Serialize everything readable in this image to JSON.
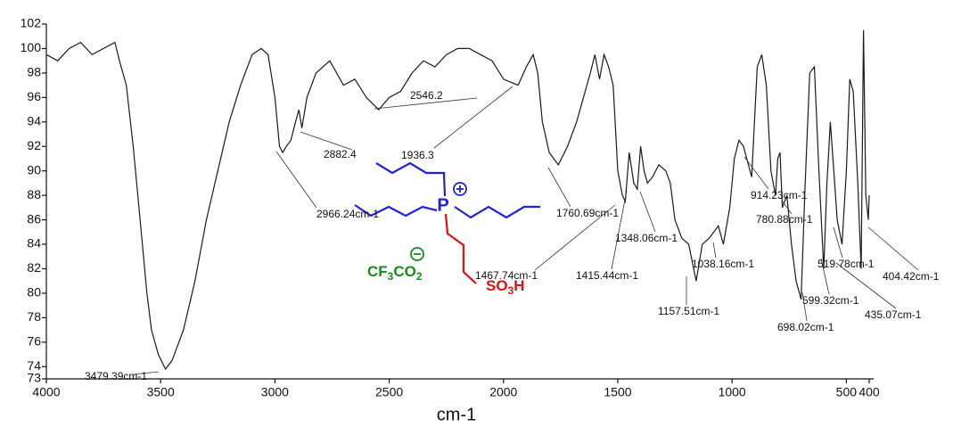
{
  "chart_data": {
    "type": "line",
    "x_label": "cm-1",
    "color": "#1a1a1a",
    "xlim": [
      4000,
      400
    ],
    "ylim": [
      73,
      102
    ],
    "xticks": [
      4000,
      3500,
      3000,
      2500,
      2000,
      1500,
      1000,
      500,
      400
    ],
    "yticks": [
      73,
      74,
      76,
      78,
      80,
      82,
      84,
      86,
      88,
      90,
      92,
      94,
      96,
      98,
      100,
      102
    ],
    "x": [
      4000,
      3950,
      3900,
      3850,
      3800,
      3750,
      3700,
      3680,
      3650,
      3620,
      3600,
      3580,
      3560,
      3540,
      3510,
      3479,
      3450,
      3400,
      3350,
      3300,
      3250,
      3200,
      3150,
      3100,
      3060,
      3030,
      3000,
      2980,
      2966,
      2950,
      2930,
      2910,
      2895,
      2882,
      2860,
      2820,
      2760,
      2700,
      2650,
      2600,
      2546,
      2500,
      2450,
      2400,
      2350,
      2300,
      2250,
      2200,
      2150,
      2100,
      2050,
      2000,
      1936,
      1900,
      1870,
      1850,
      1830,
      1800,
      1760,
      1720,
      1680,
      1650,
      1620,
      1600,
      1580,
      1560,
      1540,
      1520,
      1500,
      1480,
      1467,
      1450,
      1430,
      1415,
      1400,
      1385,
      1370,
      1348,
      1320,
      1290,
      1270,
      1250,
      1220,
      1190,
      1157,
      1130,
      1100,
      1060,
      1038,
      1010,
      990,
      970,
      950,
      914,
      890,
      870,
      850,
      830,
      810,
      800,
      790,
      780,
      760,
      740,
      720,
      698,
      680,
      660,
      640,
      620,
      599,
      585,
      570,
      555,
      540,
      519,
      500,
      485,
      470,
      450,
      435,
      425,
      415,
      404,
      400
    ],
    "values": [
      99.5,
      99,
      100,
      100.5,
      99.5,
      100,
      100.5,
      99,
      97,
      92,
      88,
      84,
      80,
      77,
      75,
      73.8,
      74.5,
      77,
      81,
      86,
      90,
      94,
      97,
      99.5,
      100,
      99.5,
      96,
      92,
      91.5,
      92,
      92.5,
      94,
      95,
      93.5,
      96,
      98,
      99,
      97,
      97.5,
      96,
      95,
      96,
      96.5,
      98,
      99,
      98.5,
      99.5,
      100,
      100,
      99.5,
      99,
      97.5,
      97,
      98.5,
      99.5,
      98,
      94,
      91.5,
      90.5,
      92,
      94,
      96,
      98,
      99.5,
      97.5,
      99.5,
      98.5,
      97,
      90,
      88,
      87.5,
      91.5,
      89,
      88.5,
      92,
      90,
      89,
      89.5,
      90.5,
      90,
      89,
      86,
      84.5,
      84,
      81,
      84,
      84.5,
      85.5,
      84,
      87,
      91,
      92.5,
      92,
      89.5,
      98.5,
      99.5,
      97,
      90,
      88,
      91,
      91.5,
      87,
      88,
      84,
      81,
      79.5,
      89,
      98,
      98.5,
      90,
      82,
      89,
      94,
      90,
      86,
      84,
      90,
      97.5,
      96.5,
      89,
      82,
      101.5,
      88,
      86,
      88
    ],
    "annotations": [
      "3479.39cm-1",
      "2966.24cm-1",
      "2882.4",
      "1936.3",
      "2546.2",
      "1760.69cm-1",
      "1467.74cm-1",
      "1415.44cm-1",
      "1348.06cm-1",
      "1038.16cm-1",
      "1157.51cm-1",
      "914.23cm-1",
      "780.88cm-1",
      "519.78cm-1",
      "599.32cm-1",
      "435.07cm-1",
      "698.02cm-1",
      "404.42cm-1"
    ],
    "structure": {
      "cation_atom": "P",
      "acid_group": [
        "SO",
        "3",
        "H"
      ],
      "anion": [
        "CF",
        "3",
        "CO",
        "2"
      ]
    }
  }
}
